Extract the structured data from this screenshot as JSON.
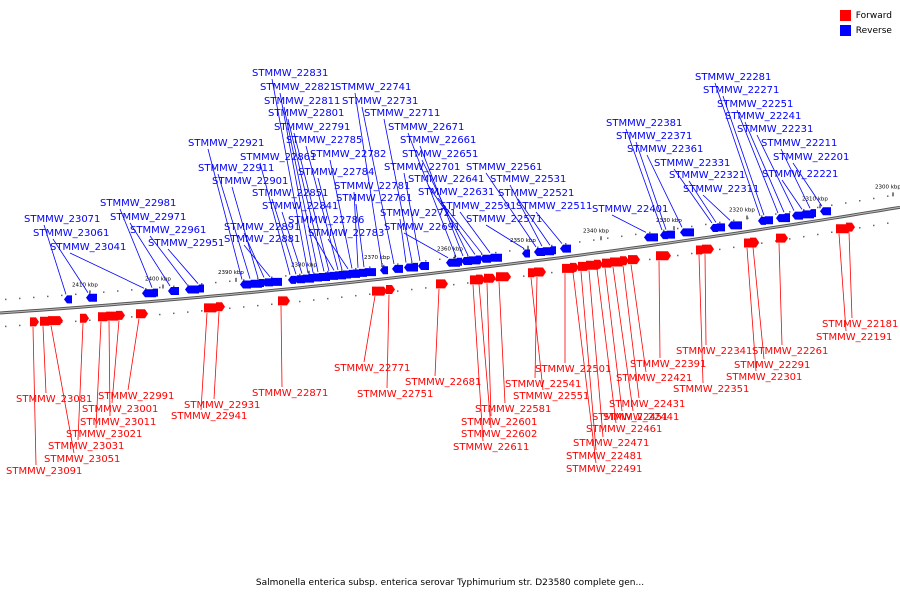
{
  "colors": {
    "forward": "#ff0000",
    "reverse": "#0000ff",
    "backbone": "#888888",
    "text": "#000000"
  },
  "legend": {
    "forward_label": "Forward",
    "reverse_label": "Reverse"
  },
  "caption": "Salmonella enterica subsp. enterica serovar Typhimurium str. D23580 complete gen...",
  "scale_ticks": [
    {
      "label": "2410 kbp",
      "pos_kbp": 2410
    },
    {
      "label": "2400 kbp",
      "pos_kbp": 2400
    },
    {
      "label": "2390 kbp",
      "pos_kbp": 2390
    },
    {
      "label": "2380 kbp",
      "pos_kbp": 2380
    },
    {
      "label": "2370 kbp",
      "pos_kbp": 2370
    },
    {
      "label": "2360 kbp",
      "pos_kbp": 2360
    },
    {
      "label": "2350 kbp",
      "pos_kbp": 2350
    },
    {
      "label": "2340 kbp",
      "pos_kbp": 2340
    },
    {
      "label": "2330 kbp",
      "pos_kbp": 2330
    },
    {
      "label": "2320 kbp",
      "pos_kbp": 2320
    },
    {
      "label": "2310 kbp",
      "pos_kbp": 2310
    },
    {
      "label": "2300 kbp",
      "pos_kbp": 2300
    }
  ],
  "reverse_genes": [
    "STMMW_23071",
    "STMMW_23061",
    "STMMW_23041",
    "STMMW_22981",
    "STMMW_22971",
    "STMMW_22961",
    "STMMW_22951",
    "STMMW_22921",
    "STMMW_22911",
    "STMMW_22901",
    "STMMW_22891",
    "STMMW_22881",
    "STMMW_22861",
    "STMMW_22851",
    "STMMW_22841",
    "STMMW_22831",
    "STMMW_22821",
    "STMMW_22811",
    "STMMW_22801",
    "STMMW_22791",
    "STMMW_22786",
    "STMMW_22785",
    "STMMW_22784",
    "STMMW_22783",
    "STMMW_22782",
    "STMMW_22781",
    "STMMW_22761",
    "STMMW_22741",
    "STMMW_22731",
    "STMMW_22721",
    "STMMW_22711",
    "STMMW_22701",
    "STMMW_22691",
    "STMMW_22671",
    "STMMW_22661",
    "STMMW_22651",
    "STMMW_22641",
    "STMMW_22631",
    "STMMW_22591",
    "STMMW_22571",
    "STMMW_22561",
    "STMMW_22531",
    "STMMW_22521",
    "STMMW_22511",
    "STMMW_22401",
    "STMMW_22381",
    "STMMW_22371",
    "STMMW_22361",
    "STMMW_22331",
    "STMMW_22321",
    "STMMW_22311",
    "STMMW_22281",
    "STMMW_22271",
    "STMMW_22251",
    "STMMW_22241",
    "STMMW_22231",
    "STMMW_22221",
    "STMMW_22211",
    "STMMW_22201"
  ],
  "forward_genes": [
    "STMMW_23091",
    "STMMW_23081",
    "STMMW_23051",
    "STMMW_23031",
    "STMMW_23021",
    "STMMW_23011",
    "STMMW_23001",
    "STMMW_22991",
    "STMMW_22941",
    "STMMW_22931",
    "STMMW_22871",
    "STMMW_22771",
    "STMMW_22751",
    "STMMW_22681",
    "STMMW_22611",
    "STMMW_22602",
    "STMMW_22601",
    "STMMW_22581",
    "STMMW_22551",
    "STMMW_22541",
    "STMMW_22501",
    "STMMW_22491",
    "STMMW_22481",
    "STMMW_22471",
    "STMMW_22461",
    "STMMW_22451",
    "STMMW_22441",
    "STMMW_22431",
    "STMMW_22421",
    "STMMW_22391",
    "STMMW_22351",
    "STMMW_22341",
    "STMMW_22301",
    "STMMW_22291",
    "STMMW_22261",
    "STMMW_22191",
    "STMMW_22181"
  ]
}
